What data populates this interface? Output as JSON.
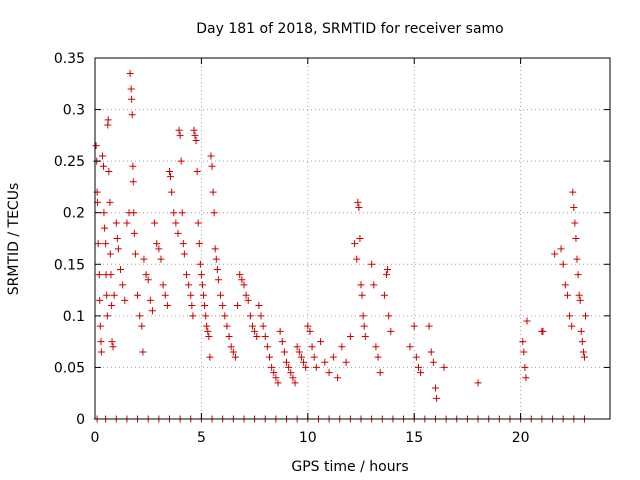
{
  "chart_data": {
    "type": "scatter",
    "title": "Day 181 of 2018, SRMTID for receiver samo",
    "xlabel": "GPS time / hours",
    "ylabel": "SRMTID / TECUs",
    "xlim": [
      0,
      24.2
    ],
    "ylim": [
      0,
      0.35
    ],
    "xticks": [
      0,
      5,
      10,
      15,
      20
    ],
    "yticks": [
      0,
      0.05,
      0.1,
      0.15,
      0.2,
      0.25,
      0.3,
      0.35
    ],
    "grid": true,
    "marker": "plus",
    "color": "#cc0000",
    "series": [
      {
        "name": "SRMTID",
        "points": [
          [
            0.05,
            0.265
          ],
          [
            0.08,
            0.25
          ],
          [
            0.1,
            0.22
          ],
          [
            0.12,
            0.21
          ],
          [
            0.15,
            0.17
          ],
          [
            0.2,
            0.14
          ],
          [
            0.22,
            0.115
          ],
          [
            0.25,
            0.09
          ],
          [
            0.28,
            0.075
          ],
          [
            0.3,
            0.065
          ],
          [
            0.35,
            0.255
          ],
          [
            0.4,
            0.245
          ],
          [
            0.42,
            0.2
          ],
          [
            0.45,
            0.185
          ],
          [
            0.5,
            0.17
          ],
          [
            0.52,
            0.14
          ],
          [
            0.55,
            0.12
          ],
          [
            0.58,
            0.1
          ],
          [
            0.6,
            0.285
          ],
          [
            0.62,
            0.29
          ],
          [
            0.65,
            0.24
          ],
          [
            0.7,
            0.21
          ],
          [
            0.72,
            0.16
          ],
          [
            0.75,
            0.14
          ],
          [
            0.78,
            0.11
          ],
          [
            0.8,
            0.075
          ],
          [
            0.85,
            0.07
          ],
          [
            0.9,
            0.12
          ],
          [
            1.0,
            0.19
          ],
          [
            1.05,
            0.175
          ],
          [
            1.1,
            0.165
          ],
          [
            1.2,
            0.145
          ],
          [
            1.3,
            0.13
          ],
          [
            1.4,
            0.115
          ],
          [
            1.5,
            0.19
          ],
          [
            1.6,
            0.2
          ],
          [
            1.65,
            0.335
          ],
          [
            1.7,
            0.32
          ],
          [
            1.72,
            0.31
          ],
          [
            1.75,
            0.295
          ],
          [
            1.78,
            0.245
          ],
          [
            1.8,
            0.23
          ],
          [
            1.82,
            0.2
          ],
          [
            1.85,
            0.18
          ],
          [
            1.9,
            0.16
          ],
          [
            2.0,
            0.12
          ],
          [
            2.1,
            0.1
          ],
          [
            2.2,
            0.09
          ],
          [
            2.25,
            0.065
          ],
          [
            2.3,
            0.155
          ],
          [
            2.4,
            0.14
          ],
          [
            2.5,
            0.135
          ],
          [
            2.6,
            0.115
          ],
          [
            2.7,
            0.105
          ],
          [
            2.8,
            0.19
          ],
          [
            2.9,
            0.17
          ],
          [
            3.0,
            0.165
          ],
          [
            3.1,
            0.155
          ],
          [
            3.2,
            0.13
          ],
          [
            3.3,
            0.12
          ],
          [
            3.4,
            0.11
          ],
          [
            3.5,
            0.24
          ],
          [
            3.55,
            0.235
          ],
          [
            3.6,
            0.22
          ],
          [
            3.7,
            0.2
          ],
          [
            3.8,
            0.19
          ],
          [
            3.9,
            0.18
          ],
          [
            3.95,
            0.28
          ],
          [
            4.0,
            0.275
          ],
          [
            4.05,
            0.25
          ],
          [
            4.1,
            0.2
          ],
          [
            4.15,
            0.17
          ],
          [
            4.2,
            0.16
          ],
          [
            4.3,
            0.14
          ],
          [
            4.4,
            0.13
          ],
          [
            4.5,
            0.12
          ],
          [
            4.55,
            0.11
          ],
          [
            4.6,
            0.1
          ],
          [
            4.65,
            0.28
          ],
          [
            4.7,
            0.275
          ],
          [
            4.75,
            0.27
          ],
          [
            4.8,
            0.24
          ],
          [
            4.85,
            0.19
          ],
          [
            4.9,
            0.17
          ],
          [
            4.95,
            0.15
          ],
          [
            5.0,
            0.14
          ],
          [
            5.05,
            0.13
          ],
          [
            5.1,
            0.12
          ],
          [
            5.15,
            0.11
          ],
          [
            5.2,
            0.1
          ],
          [
            5.25,
            0.09
          ],
          [
            5.3,
            0.085
          ],
          [
            5.35,
            0.08
          ],
          [
            5.4,
            0.06
          ],
          [
            5.45,
            0.255
          ],
          [
            5.5,
            0.245
          ],
          [
            5.55,
            0.22
          ],
          [
            5.6,
            0.2
          ],
          [
            5.65,
            0.165
          ],
          [
            5.7,
            0.155
          ],
          [
            5.75,
            0.145
          ],
          [
            5.8,
            0.135
          ],
          [
            5.9,
            0.12
          ],
          [
            6.0,
            0.11
          ],
          [
            6.1,
            0.1
          ],
          [
            6.2,
            0.09
          ],
          [
            6.3,
            0.08
          ],
          [
            6.4,
            0.07
          ],
          [
            6.5,
            0.065
          ],
          [
            6.6,
            0.06
          ],
          [
            6.7,
            0.11
          ],
          [
            6.8,
            0.14
          ],
          [
            6.9,
            0.135
          ],
          [
            7.0,
            0.13
          ],
          [
            7.1,
            0.12
          ],
          [
            7.2,
            0.115
          ],
          [
            7.3,
            0.1
          ],
          [
            7.4,
            0.09
          ],
          [
            7.5,
            0.085
          ],
          [
            7.6,
            0.08
          ],
          [
            7.7,
            0.11
          ],
          [
            7.8,
            0.1
          ],
          [
            7.9,
            0.09
          ],
          [
            8.0,
            0.08
          ],
          [
            8.1,
            0.07
          ],
          [
            8.2,
            0.06
          ],
          [
            8.3,
            0.05
          ],
          [
            8.4,
            0.045
          ],
          [
            8.5,
            0.04
          ],
          [
            8.6,
            0.035
          ],
          [
            8.7,
            0.085
          ],
          [
            8.8,
            0.075
          ],
          [
            8.9,
            0.065
          ],
          [
            9.0,
            0.055
          ],
          [
            9.1,
            0.05
          ],
          [
            9.2,
            0.045
          ],
          [
            9.3,
            0.04
          ],
          [
            9.4,
            0.035
          ],
          [
            9.5,
            0.07
          ],
          [
            9.6,
            0.065
          ],
          [
            9.7,
            0.06
          ],
          [
            9.8,
            0.055
          ],
          [
            9.9,
            0.05
          ],
          [
            10.0,
            0.09
          ],
          [
            10.1,
            0.085
          ],
          [
            10.2,
            0.07
          ],
          [
            10.3,
            0.06
          ],
          [
            10.4,
            0.05
          ],
          [
            10.6,
            0.075
          ],
          [
            10.8,
            0.055
          ],
          [
            11.0,
            0.045
          ],
          [
            11.2,
            0.06
          ],
          [
            11.4,
            0.04
          ],
          [
            11.6,
            0.07
          ],
          [
            11.8,
            0.055
          ],
          [
            12.0,
            0.08
          ],
          [
            12.2,
            0.17
          ],
          [
            12.3,
            0.155
          ],
          [
            12.35,
            0.21
          ],
          [
            12.4,
            0.205
          ],
          [
            12.45,
            0.175
          ],
          [
            12.5,
            0.13
          ],
          [
            12.55,
            0.12
          ],
          [
            12.6,
            0.1
          ],
          [
            12.65,
            0.09
          ],
          [
            12.7,
            0.08
          ],
          [
            13.0,
            0.15
          ],
          [
            13.1,
            0.13
          ],
          [
            13.2,
            0.07
          ],
          [
            13.3,
            0.06
          ],
          [
            13.4,
            0.045
          ],
          [
            13.6,
            0.12
          ],
          [
            13.7,
            0.14
          ],
          [
            13.75,
            0.145
          ],
          [
            13.8,
            0.1
          ],
          [
            13.9,
            0.085
          ],
          [
            14.8,
            0.07
          ],
          [
            15.0,
            0.09
          ],
          [
            15.1,
            0.06
          ],
          [
            15.2,
            0.05
          ],
          [
            15.3,
            0.045
          ],
          [
            15.7,
            0.09
          ],
          [
            15.8,
            0.065
          ],
          [
            15.9,
            0.055
          ],
          [
            16.0,
            0.03
          ],
          [
            16.05,
            0.02
          ],
          [
            16.4,
            0.05
          ],
          [
            18.0,
            0.035
          ],
          [
            20.1,
            0.075
          ],
          [
            20.15,
            0.065
          ],
          [
            20.2,
            0.05
          ],
          [
            20.25,
            0.04
          ],
          [
            20.3,
            0.095
          ],
          [
            21.0,
            0.085
          ],
          [
            21.05,
            0.085
          ],
          [
            21.6,
            0.16
          ],
          [
            21.9,
            0.165
          ],
          [
            22.0,
            0.15
          ],
          [
            22.1,
            0.13
          ],
          [
            22.2,
            0.12
          ],
          [
            22.3,
            0.1
          ],
          [
            22.4,
            0.09
          ],
          [
            22.45,
            0.22
          ],
          [
            22.5,
            0.205
          ],
          [
            22.55,
            0.19
          ],
          [
            22.6,
            0.175
          ],
          [
            22.65,
            0.155
          ],
          [
            22.7,
            0.14
          ],
          [
            22.75,
            0.12
          ],
          [
            22.8,
            0.115
          ],
          [
            22.85,
            0.085
          ],
          [
            22.9,
            0.075
          ],
          [
            22.95,
            0.065
          ],
          [
            23.0,
            0.06
          ],
          [
            23.05,
            0.1
          ],
          [
            0.1,
            0
          ],
          [
            0.5,
            0
          ],
          [
            1.0,
            0
          ],
          [
            1.5,
            0
          ],
          [
            2.0,
            0
          ],
          [
            2.5,
            0
          ],
          [
            3.0,
            0
          ],
          [
            3.5,
            0
          ],
          [
            4.0,
            0
          ],
          [
            4.5,
            0
          ],
          [
            5.0,
            0
          ],
          [
            5.5,
            0
          ],
          [
            6.0,
            0
          ],
          [
            6.5,
            0
          ],
          [
            7.0,
            0
          ],
          [
            7.5,
            0
          ],
          [
            8.0,
            0
          ],
          [
            8.5,
            0
          ],
          [
            9.0,
            0
          ],
          [
            9.5,
            0
          ],
          [
            10.0,
            0
          ],
          [
            10.5,
            0
          ],
          [
            11.0,
            0
          ],
          [
            11.5,
            0
          ],
          [
            12.0,
            0
          ],
          [
            12.5,
            0
          ],
          [
            13.0,
            0
          ],
          [
            13.5,
            0
          ],
          [
            14.0,
            0
          ],
          [
            14.5,
            0
          ],
          [
            15.0,
            0
          ],
          [
            15.5,
            0
          ],
          [
            16.0,
            0
          ],
          [
            16.5,
            0
          ],
          [
            17.0,
            0
          ],
          [
            17.5,
            0
          ],
          [
            18.0,
            0
          ],
          [
            18.5,
            0
          ],
          [
            19.0,
            0
          ],
          [
            19.5,
            0
          ],
          [
            20.0,
            0
          ],
          [
            20.5,
            0
          ],
          [
            21.0,
            0
          ],
          [
            21.5,
            0
          ],
          [
            22.0,
            0
          ],
          [
            22.5,
            0
          ],
          [
            23.0,
            0
          ]
        ]
      }
    ]
  }
}
